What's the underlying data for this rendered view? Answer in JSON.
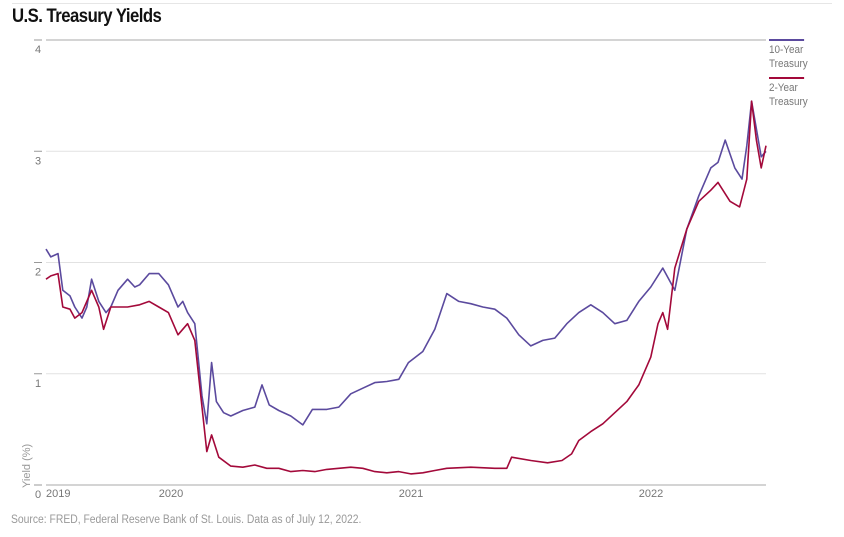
{
  "title": "U.S. Treasury Yields",
  "source": "Source: FRED, Federal Reserve Bank of St. Louis. Data as of July 12, 2022.",
  "chart_data": {
    "type": "line",
    "title": "U.S. Treasury Yields",
    "xlabel": "",
    "ylabel": "Yield (%)",
    "xlim": [
      2019.53,
      2022.53
    ],
    "ylim": [
      0,
      4
    ],
    "yticks": [
      "0",
      "1",
      "2",
      "3",
      "4"
    ],
    "xticks": [
      {
        "label": "2019",
        "value": 2019.53
      },
      {
        "label": "2020",
        "value": 2020.0
      },
      {
        "label": "2021",
        "value": 2021.0
      },
      {
        "label": "2022",
        "value": 2022.0
      }
    ],
    "grid": true,
    "legend": "right",
    "series": [
      {
        "name": "10-Year Treasury",
        "color": "#5b4a9e",
        "points": [
          [
            2019.53,
            2.12
          ],
          [
            2019.55,
            2.05
          ],
          [
            2019.58,
            2.08
          ],
          [
            2019.6,
            1.75
          ],
          [
            2019.63,
            1.7
          ],
          [
            2019.65,
            1.6
          ],
          [
            2019.68,
            1.5
          ],
          [
            2019.7,
            1.6
          ],
          [
            2019.72,
            1.85
          ],
          [
            2019.75,
            1.65
          ],
          [
            2019.78,
            1.55
          ],
          [
            2019.8,
            1.6
          ],
          [
            2019.83,
            1.75
          ],
          [
            2019.87,
            1.85
          ],
          [
            2019.9,
            1.78
          ],
          [
            2019.92,
            1.8
          ],
          [
            2019.96,
            1.9
          ],
          [
            2020.0,
            1.9
          ],
          [
            2020.04,
            1.8
          ],
          [
            2020.08,
            1.6
          ],
          [
            2020.1,
            1.65
          ],
          [
            2020.12,
            1.55
          ],
          [
            2020.15,
            1.45
          ],
          [
            2020.18,
            0.8
          ],
          [
            2020.2,
            0.55
          ],
          [
            2020.22,
            1.1
          ],
          [
            2020.24,
            0.75
          ],
          [
            2020.27,
            0.65
          ],
          [
            2020.3,
            0.62
          ],
          [
            2020.35,
            0.67
          ],
          [
            2020.4,
            0.7
          ],
          [
            2020.43,
            0.9
          ],
          [
            2020.46,
            0.72
          ],
          [
            2020.5,
            0.67
          ],
          [
            2020.55,
            0.62
          ],
          [
            2020.6,
            0.54
          ],
          [
            2020.64,
            0.68
          ],
          [
            2020.7,
            0.68
          ],
          [
            2020.75,
            0.7
          ],
          [
            2020.8,
            0.82
          ],
          [
            2020.85,
            0.87
          ],
          [
            2020.9,
            0.92
          ],
          [
            2020.95,
            0.93
          ],
          [
            2021.0,
            0.95
          ],
          [
            2021.04,
            1.1
          ],
          [
            2021.1,
            1.2
          ],
          [
            2021.15,
            1.4
          ],
          [
            2021.2,
            1.72
          ],
          [
            2021.25,
            1.65
          ],
          [
            2021.3,
            1.63
          ],
          [
            2021.35,
            1.6
          ],
          [
            2021.4,
            1.58
          ],
          [
            2021.45,
            1.5
          ],
          [
            2021.5,
            1.35
          ],
          [
            2021.55,
            1.25
          ],
          [
            2021.6,
            1.3
          ],
          [
            2021.65,
            1.32
          ],
          [
            2021.7,
            1.45
          ],
          [
            2021.75,
            1.55
          ],
          [
            2021.8,
            1.62
          ],
          [
            2021.85,
            1.55
          ],
          [
            2021.9,
            1.45
          ],
          [
            2021.95,
            1.48
          ],
          [
            2022.0,
            1.65
          ],
          [
            2022.05,
            1.78
          ],
          [
            2022.1,
            1.95
          ],
          [
            2022.15,
            1.75
          ],
          [
            2022.2,
            2.3
          ],
          [
            2022.25,
            2.6
          ],
          [
            2022.3,
            2.85
          ],
          [
            2022.33,
            2.9
          ],
          [
            2022.36,
            3.1
          ],
          [
            2022.4,
            2.85
          ],
          [
            2022.43,
            2.75
          ],
          [
            2022.45,
            3.05
          ],
          [
            2022.47,
            3.45
          ],
          [
            2022.49,
            3.2
          ],
          [
            2022.51,
            2.95
          ],
          [
            2022.53,
            3.0
          ]
        ]
      },
      {
        "name": "2-Year Treasury",
        "color": "#a3093a",
        "points": [
          [
            2019.53,
            1.85
          ],
          [
            2019.55,
            1.88
          ],
          [
            2019.58,
            1.9
          ],
          [
            2019.6,
            1.6
          ],
          [
            2019.63,
            1.58
          ],
          [
            2019.65,
            1.5
          ],
          [
            2019.68,
            1.55
          ],
          [
            2019.72,
            1.75
          ],
          [
            2019.75,
            1.6
          ],
          [
            2019.77,
            1.4
          ],
          [
            2019.8,
            1.6
          ],
          [
            2019.87,
            1.6
          ],
          [
            2019.92,
            1.62
          ],
          [
            2019.96,
            1.65
          ],
          [
            2020.0,
            1.6
          ],
          [
            2020.04,
            1.55
          ],
          [
            2020.08,
            1.35
          ],
          [
            2020.12,
            1.45
          ],
          [
            2020.15,
            1.3
          ],
          [
            2020.18,
            0.7
          ],
          [
            2020.2,
            0.3
          ],
          [
            2020.22,
            0.45
          ],
          [
            2020.25,
            0.25
          ],
          [
            2020.3,
            0.17
          ],
          [
            2020.35,
            0.16
          ],
          [
            2020.4,
            0.18
          ],
          [
            2020.45,
            0.15
          ],
          [
            2020.5,
            0.15
          ],
          [
            2020.55,
            0.12
          ],
          [
            2020.6,
            0.13
          ],
          [
            2020.65,
            0.12
          ],
          [
            2020.7,
            0.14
          ],
          [
            2020.75,
            0.15
          ],
          [
            2020.8,
            0.16
          ],
          [
            2020.85,
            0.15
          ],
          [
            2020.9,
            0.12
          ],
          [
            2020.95,
            0.11
          ],
          [
            2021.0,
            0.12
          ],
          [
            2021.05,
            0.1
          ],
          [
            2021.1,
            0.11
          ],
          [
            2021.15,
            0.13
          ],
          [
            2021.2,
            0.15
          ],
          [
            2021.3,
            0.16
          ],
          [
            2021.4,
            0.15
          ],
          [
            2021.45,
            0.15
          ],
          [
            2021.47,
            0.25
          ],
          [
            2021.55,
            0.22
          ],
          [
            2021.62,
            0.2
          ],
          [
            2021.68,
            0.22
          ],
          [
            2021.72,
            0.28
          ],
          [
            2021.75,
            0.4
          ],
          [
            2021.8,
            0.48
          ],
          [
            2021.85,
            0.55
          ],
          [
            2021.9,
            0.65
          ],
          [
            2021.95,
            0.75
          ],
          [
            2022.0,
            0.9
          ],
          [
            2022.05,
            1.15
          ],
          [
            2022.08,
            1.45
          ],
          [
            2022.1,
            1.55
          ],
          [
            2022.12,
            1.4
          ],
          [
            2022.15,
            1.95
          ],
          [
            2022.2,
            2.3
          ],
          [
            2022.25,
            2.55
          ],
          [
            2022.3,
            2.65
          ],
          [
            2022.33,
            2.72
          ],
          [
            2022.38,
            2.55
          ],
          [
            2022.42,
            2.5
          ],
          [
            2022.45,
            2.75
          ],
          [
            2022.47,
            3.45
          ],
          [
            2022.49,
            3.1
          ],
          [
            2022.51,
            2.85
          ],
          [
            2022.53,
            3.05
          ]
        ]
      }
    ]
  }
}
